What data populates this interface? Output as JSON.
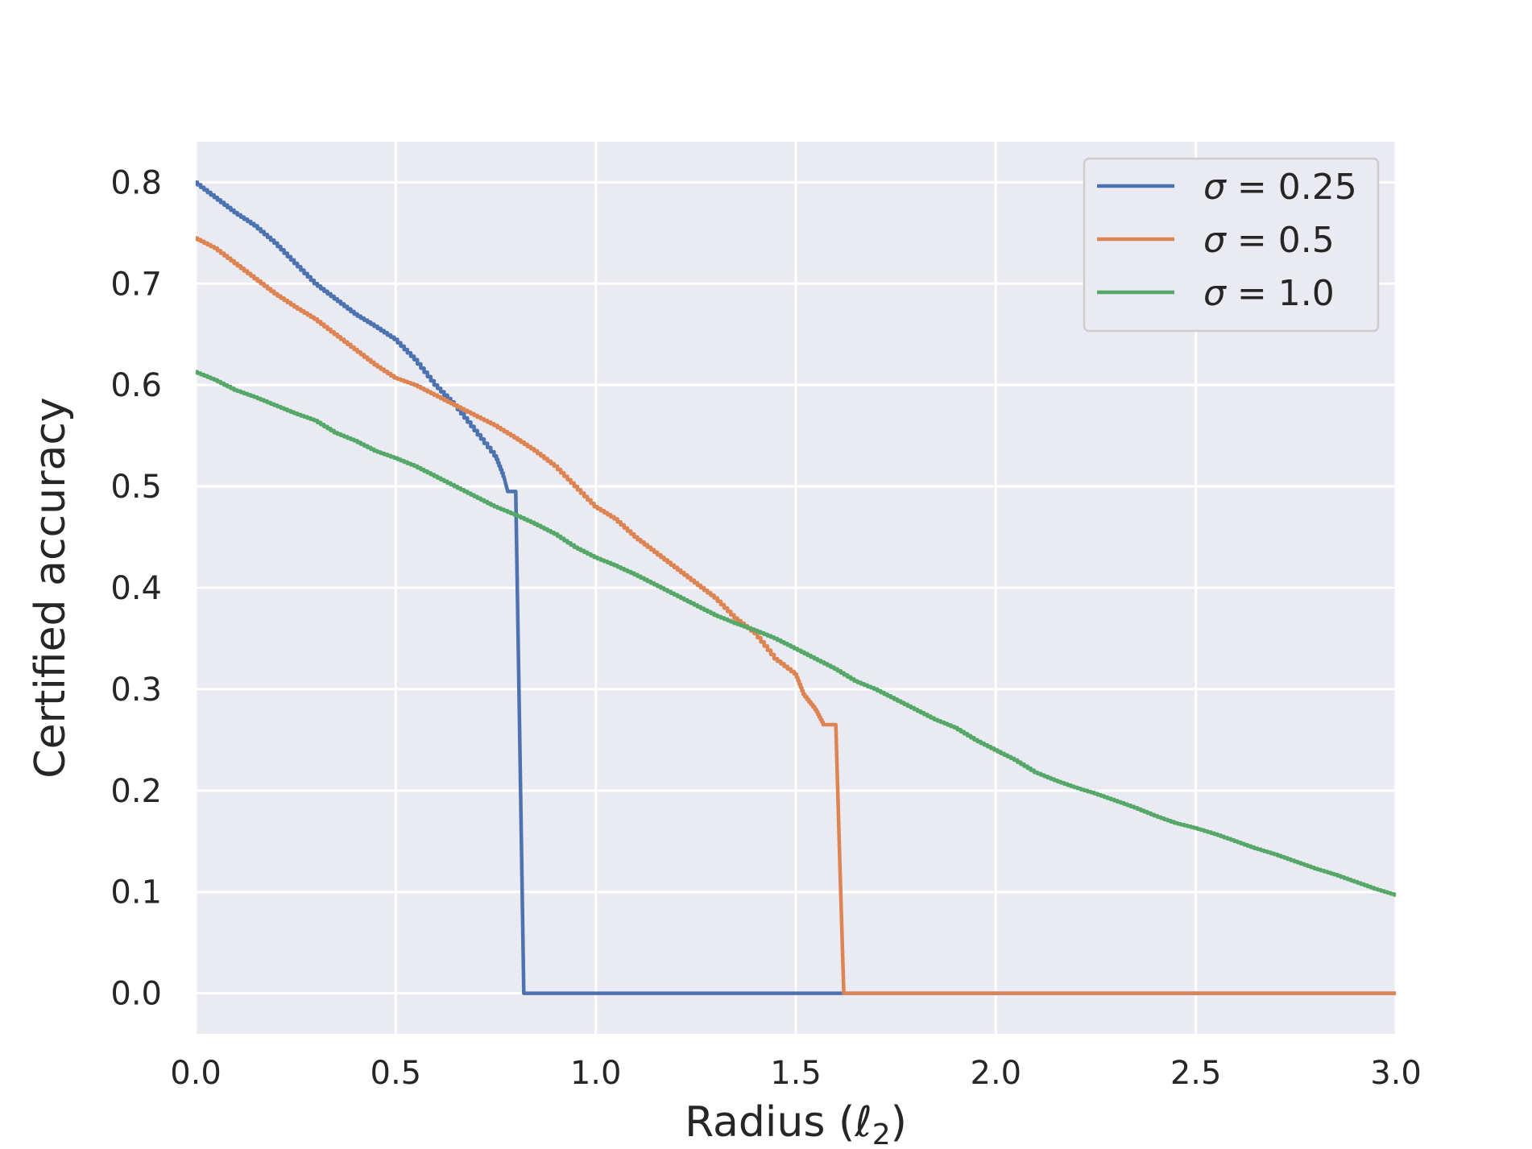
{
  "chart_data": {
    "type": "line",
    "title": "",
    "xlabel": "Radius (ℓ2)",
    "xlabel_main": "Radius (",
    "xlabel_ell": "ℓ",
    "xlabel_sub": "2",
    "xlabel_close": ")",
    "ylabel": "Certified accuracy",
    "xlim": [
      0,
      3.0
    ],
    "ylim": [
      -0.04,
      0.84
    ],
    "xticks": [
      0.0,
      0.5,
      1.0,
      1.5,
      2.0,
      2.5,
      3.0
    ],
    "xtick_labels": [
      "0.0",
      "0.5",
      "1.0",
      "1.5",
      "2.0",
      "2.5",
      "3.0"
    ],
    "yticks": [
      0.0,
      0.1,
      0.2,
      0.3,
      0.4,
      0.5,
      0.6,
      0.7,
      0.8
    ],
    "ytick_labels": [
      "0.0",
      "0.1",
      "0.2",
      "0.3",
      "0.4",
      "0.5",
      "0.6",
      "0.7",
      "0.8"
    ],
    "grid": true,
    "background": "#eaeaf2",
    "legend_placement": "top-right",
    "series": [
      {
        "name": "σ = 0.25",
        "symbol": "σ",
        "value_label": "0.25",
        "color": "#4c72b0",
        "x": [
          0.0,
          0.05,
          0.1,
          0.15,
          0.2,
          0.25,
          0.3,
          0.35,
          0.4,
          0.45,
          0.5,
          0.55,
          0.6,
          0.65,
          0.7,
          0.75,
          0.77,
          0.78,
          0.8,
          0.81,
          0.82,
          3.0
        ],
        "y": [
          0.8,
          0.785,
          0.77,
          0.757,
          0.74,
          0.72,
          0.7,
          0.685,
          0.67,
          0.658,
          0.645,
          0.625,
          0.6,
          0.58,
          0.555,
          0.53,
          0.51,
          0.495,
          0.495,
          0.25,
          0.0,
          0.0
        ]
      },
      {
        "name": "σ = 0.5",
        "symbol": "σ",
        "value_label": "0.5",
        "color": "#dd8452",
        "x": [
          0.0,
          0.05,
          0.1,
          0.15,
          0.2,
          0.25,
          0.3,
          0.35,
          0.4,
          0.45,
          0.5,
          0.55,
          0.6,
          0.65,
          0.7,
          0.75,
          0.8,
          0.85,
          0.9,
          0.95,
          1.0,
          1.05,
          1.1,
          1.15,
          1.2,
          1.25,
          1.3,
          1.35,
          1.4,
          1.45,
          1.5,
          1.52,
          1.55,
          1.57,
          1.6,
          1.61,
          1.62,
          3.0
        ],
        "y": [
          0.745,
          0.735,
          0.72,
          0.705,
          0.69,
          0.677,
          0.665,
          0.65,
          0.635,
          0.62,
          0.607,
          0.6,
          0.59,
          0.58,
          0.57,
          0.56,
          0.548,
          0.535,
          0.52,
          0.5,
          0.48,
          0.468,
          0.45,
          0.435,
          0.42,
          0.405,
          0.39,
          0.37,
          0.355,
          0.33,
          0.315,
          0.295,
          0.28,
          0.265,
          0.265,
          0.13,
          0.0,
          0.0
        ]
      },
      {
        "name": "σ = 1.0",
        "symbol": "σ",
        "value_label": "1.0",
        "color": "#55a868",
        "x": [
          0.0,
          0.05,
          0.1,
          0.15,
          0.2,
          0.25,
          0.3,
          0.35,
          0.4,
          0.45,
          0.5,
          0.55,
          0.6,
          0.65,
          0.7,
          0.75,
          0.8,
          0.85,
          0.9,
          0.95,
          1.0,
          1.05,
          1.1,
          1.15,
          1.2,
          1.25,
          1.3,
          1.35,
          1.4,
          1.45,
          1.5,
          1.55,
          1.6,
          1.65,
          1.7,
          1.75,
          1.8,
          1.85,
          1.9,
          1.95,
          2.0,
          2.05,
          2.1,
          2.15,
          2.2,
          2.25,
          2.3,
          2.35,
          2.4,
          2.45,
          2.5,
          2.55,
          2.6,
          2.65,
          2.7,
          2.75,
          2.8,
          2.85,
          2.9,
          2.95,
          3.0
        ],
        "y": [
          0.613,
          0.605,
          0.595,
          0.588,
          0.58,
          0.572,
          0.565,
          0.553,
          0.545,
          0.535,
          0.528,
          0.52,
          0.51,
          0.5,
          0.49,
          0.48,
          0.472,
          0.463,
          0.453,
          0.44,
          0.43,
          0.422,
          0.413,
          0.403,
          0.393,
          0.383,
          0.373,
          0.365,
          0.358,
          0.35,
          0.34,
          0.33,
          0.32,
          0.308,
          0.3,
          0.29,
          0.28,
          0.27,
          0.262,
          0.25,
          0.24,
          0.23,
          0.218,
          0.21,
          0.203,
          0.197,
          0.19,
          0.183,
          0.175,
          0.168,
          0.163,
          0.157,
          0.15,
          0.143,
          0.137,
          0.13,
          0.123,
          0.117,
          0.11,
          0.103,
          0.097
        ]
      }
    ]
  }
}
